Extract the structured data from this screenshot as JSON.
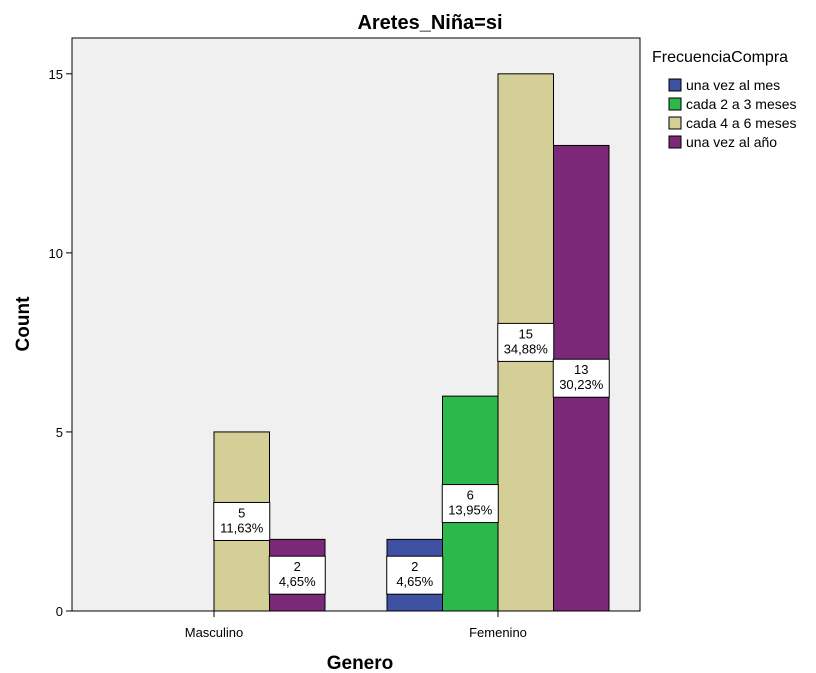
{
  "chart_data": {
    "type": "bar",
    "title": "Aretes_Niña=si",
    "xlabel": "Genero",
    "ylabel": "Count",
    "categories": [
      "Masculino",
      "Femenino"
    ],
    "ylim": [
      0,
      16
    ],
    "yticks": [
      0,
      5,
      10,
      15
    ],
    "grid": false,
    "legend_title": "FrecuenciaCompra",
    "legend_position": "top-right",
    "series": [
      {
        "name": "una vez al mes",
        "color": "#3F51A3",
        "values": [
          0,
          2
        ],
        "labels": [
          null,
          "2\n4,65%"
        ]
      },
      {
        "name": "cada 2 a 3 meses",
        "color": "#2DB84C",
        "values": [
          0,
          6
        ],
        "labels": [
          null,
          "6\n13,95%"
        ]
      },
      {
        "name": "cada 4 a 6 meses",
        "color": "#D4CF97",
        "values": [
          5,
          15
        ],
        "labels": [
          "5\n11,63%",
          "15\n34,88%"
        ]
      },
      {
        "name": "una vez al año",
        "color": "#7B2878",
        "values": [
          2,
          13
        ],
        "labels": [
          "2\n4,65%",
          "13\n30,23%"
        ]
      }
    ]
  }
}
